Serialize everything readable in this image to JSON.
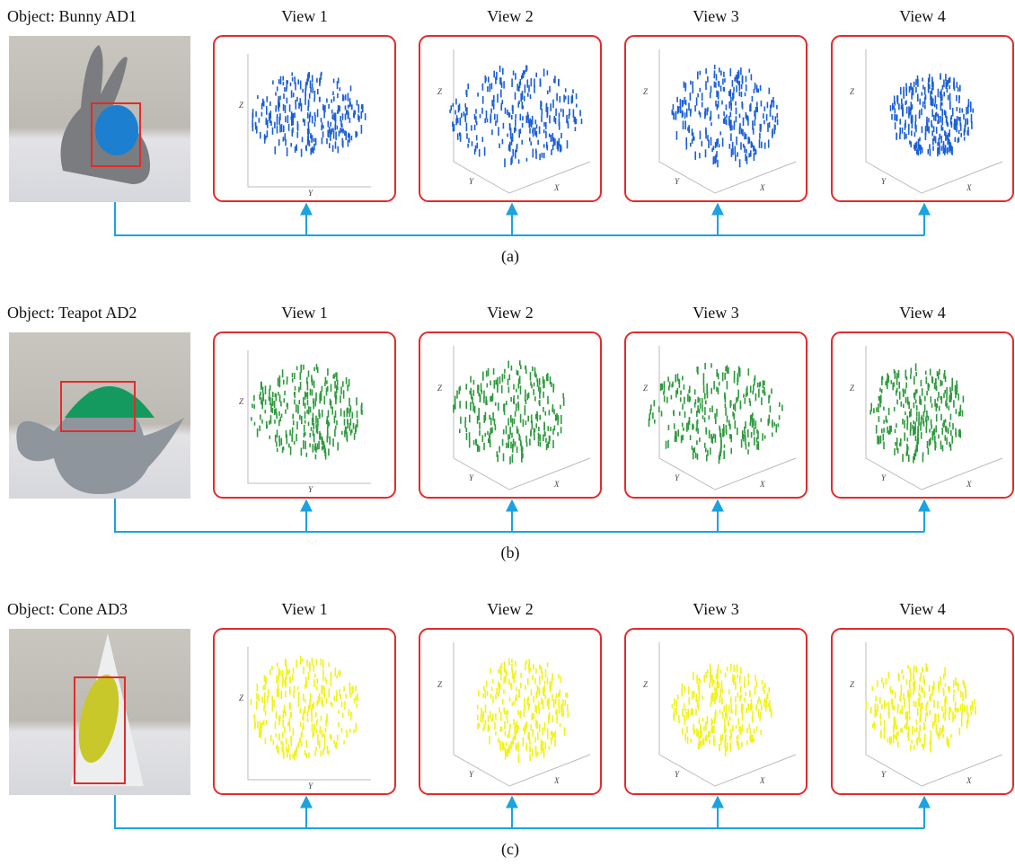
{
  "rows": [
    {
      "object": "Object: Bunny AD1",
      "caption": "(a)",
      "views": [
        {
          "label": "View 1",
          "axes": [
            "Z",
            "Y"
          ]
        },
        {
          "label": "View 2",
          "axes": [
            "Z",
            "Y",
            "X"
          ]
        },
        {
          "label": "View 3",
          "axes": [
            "Z",
            "Y",
            "X"
          ]
        },
        {
          "label": "View 4",
          "axes": [
            "Z",
            "Y",
            "X"
          ]
        }
      ]
    },
    {
      "object": "Object: Teapot AD2",
      "caption": "(b)",
      "views": [
        {
          "label": "View 1",
          "axes": [
            "Z",
            "Y"
          ]
        },
        {
          "label": "View 2",
          "axes": [
            "Z",
            "Y",
            "X"
          ]
        },
        {
          "label": "View 3",
          "axes": [
            "Z",
            "Y",
            "X"
          ]
        },
        {
          "label": "View 4",
          "axes": [
            "Z",
            "Y",
            "X"
          ]
        }
      ]
    },
    {
      "object": "Object: Cone AD3",
      "caption": "(c)",
      "views": [
        {
          "label": "View 1",
          "axes": [
            "Z",
            "Y"
          ]
        },
        {
          "label": "View 2",
          "axes": [
            "Z",
            "Y",
            "X"
          ]
        },
        {
          "label": "View 3",
          "axes": [
            "Z",
            "Y",
            "X"
          ]
        },
        {
          "label": "View 4",
          "axes": [
            "Z",
            "Y",
            "X"
          ]
        }
      ]
    }
  ]
}
